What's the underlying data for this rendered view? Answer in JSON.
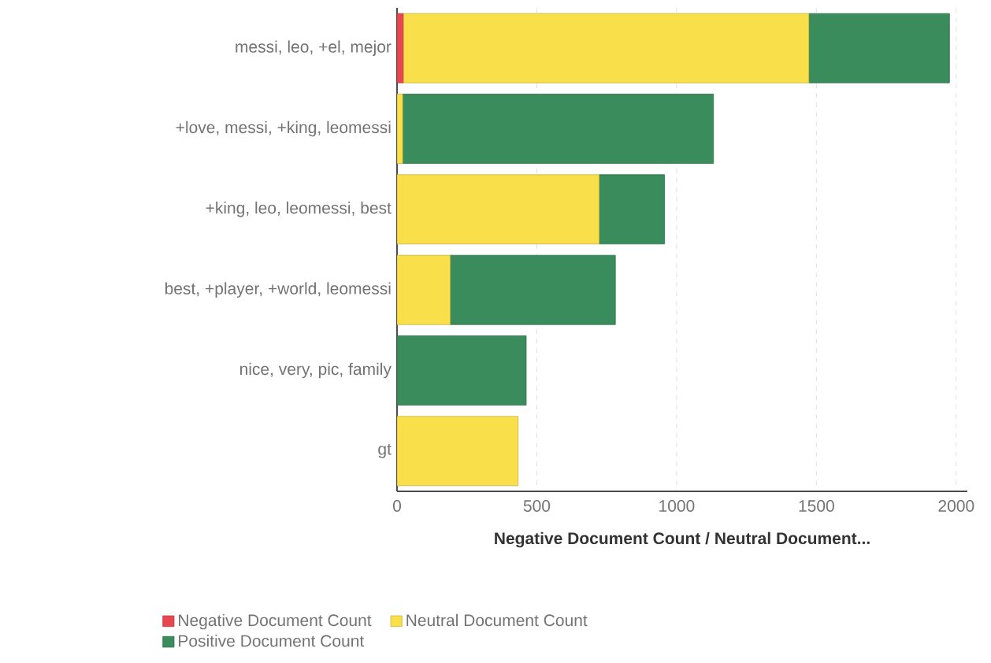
{
  "chart_data": {
    "type": "bar",
    "orientation": "horizontal",
    "stacked": true,
    "categories": [
      "messi, leo, +el, mejor",
      "+love, messi, +king, leomessi",
      "+king, leo, leomessi, best",
      "best, +player, +world, leomessi",
      "nice, very, pic, family",
      "gt"
    ],
    "series": [
      {
        "name": "Negative Document Count",
        "color": "#e8474f",
        "values": [
          22,
          0,
          0,
          0,
          0,
          0
        ]
      },
      {
        "name": "Neutral Document Count",
        "color": "#f9e04b",
        "values": [
          1451,
          20,
          723,
          190,
          0,
          433
        ]
      },
      {
        "name": "Positive Document Count",
        "color": "#3a8c5c",
        "values": [
          503,
          1112,
          234,
          591,
          462,
          0
        ]
      }
    ],
    "xlabel": "Negative Document Count / Neutral Document...",
    "xlim": [
      0,
      2040
    ],
    "xticks": [
      0,
      500,
      1000,
      1500,
      2000
    ],
    "grid": "x",
    "legend": "bottom"
  }
}
